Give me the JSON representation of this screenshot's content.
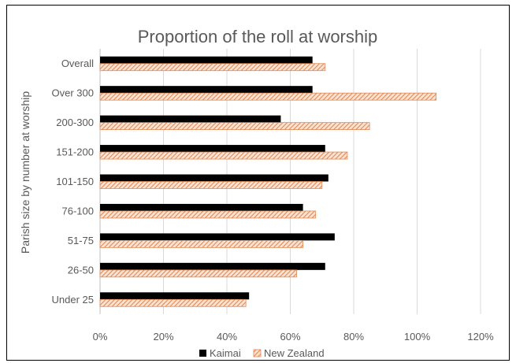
{
  "chart_data": {
    "type": "bar",
    "orientation": "horizontal",
    "title": "Proportion of the roll at worship",
    "xlabel": "",
    "ylabel": "Parish size by number at worship",
    "categories": [
      "Overall",
      "Over 300",
      "200-300",
      "151-200",
      "101-150",
      "76-100",
      "51-75",
      "26-50",
      "Under 25"
    ],
    "series": [
      {
        "name": "Kaimai",
        "values": [
          67,
          67,
          57,
          71,
          72,
          64,
          74,
          71,
          47
        ],
        "color": "#000000",
        "pattern": "solid"
      },
      {
        "name": "New Zealand",
        "values": [
          71,
          106,
          85,
          78,
          70,
          68,
          64,
          62,
          46
        ],
        "color": "#f4b183",
        "pattern": "diagonal-hatch"
      }
    ],
    "xlim": [
      0,
      120
    ],
    "xticks": [
      "0%",
      "20%",
      "40%",
      "60%",
      "80%",
      "100%",
      "120%"
    ],
    "xtick_values": [
      0,
      20,
      40,
      60,
      80,
      100,
      120
    ],
    "grid": "vertical",
    "legend_position": "bottom"
  }
}
